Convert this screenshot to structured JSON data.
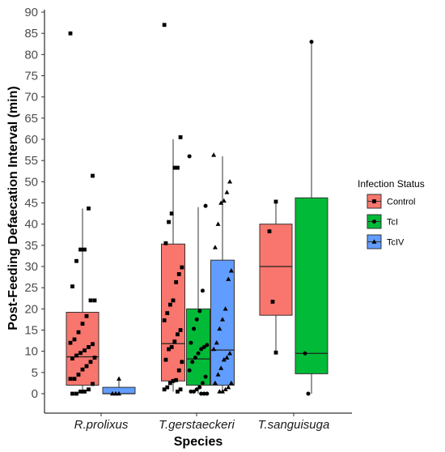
{
  "chart_data": {
    "type": "box",
    "xlabel": "Species",
    "ylabel": "Post-Feeding Defaecation Interval (min)",
    "ylim": [
      0,
      90
    ],
    "yticks": [
      0,
      5,
      10,
      15,
      20,
      25,
      30,
      35,
      40,
      45,
      50,
      55,
      60,
      65,
      70,
      75,
      80,
      85,
      90
    ],
    "grid": false,
    "categories": [
      "R.prolixus",
      "T.gerstaeckeri",
      "T.sanguisuga"
    ],
    "legend": {
      "title": "Infection Status",
      "placement": "right",
      "entries": [
        "Control",
        "TcI",
        "TcIV"
      ]
    },
    "colors": {
      "Control": "#f8766d",
      "TcI": "#00ba38",
      "TcIV": "#619cff"
    },
    "markers": {
      "Control": "square",
      "TcI": "circle",
      "TcIV": "triangle"
    },
    "boxes": [
      {
        "category": "R.prolixus",
        "group": "Control",
        "min": 0,
        "q1": 2,
        "median": 8.7,
        "q3": 19.2,
        "max": 43.7
      },
      {
        "category": "R.prolixus",
        "group": "TcIV",
        "min": 0,
        "q1": 0,
        "median": 0,
        "q3": 1.5,
        "max": 3.5
      },
      {
        "category": "T.gerstaeckeri",
        "group": "Control",
        "min": 0.5,
        "q1": 3,
        "median": 11.8,
        "q3": 35.3,
        "max": 60
      },
      {
        "category": "T.gerstaeckeri",
        "group": "TcI",
        "min": 0,
        "q1": 2,
        "median": 8.2,
        "q3": 20,
        "max": 44
      },
      {
        "category": "T.gerstaeckeri",
        "group": "TcIV",
        "min": 0.5,
        "q1": 2,
        "median": 10.3,
        "q3": 31.5,
        "max": 56
      },
      {
        "category": "T.sanguisuga",
        "group": "Control",
        "min": 9.7,
        "q1": 18.5,
        "median": 30,
        "q3": 40,
        "max": 45.3
      },
      {
        "category": "T.sanguisuga",
        "group": "TcI",
        "min": 0,
        "q1": 4.7,
        "median": 9.5,
        "q3": 46.2,
        "max": 83
      }
    ],
    "points": [
      {
        "category": "R.prolixus",
        "group": "Control",
        "values": [
          85,
          51.4,
          43.7,
          34,
          34,
          31.3,
          25.3,
          22,
          22,
          18.3,
          16.5,
          14.5,
          12.8,
          12,
          11.7,
          11,
          10.2,
          9.6,
          9,
          8.3,
          8.5,
          7.5,
          6.5,
          5.7,
          4.5,
          3.5,
          3.5,
          2.3,
          1,
          0.5,
          0.5,
          0,
          0
        ]
      },
      {
        "category": "R.prolixus",
        "group": "TcIV",
        "values": [
          3.5,
          0,
          0,
          0
        ]
      },
      {
        "category": "T.gerstaeckeri",
        "group": "Control",
        "values": [
          87,
          60.5,
          53.3,
          53.3,
          42.5,
          40.5,
          35.5,
          29.8,
          28.2,
          26.3,
          22,
          21,
          19,
          17.3,
          15,
          14,
          12.3,
          11,
          10.5,
          8,
          7.5,
          5.5,
          3.2,
          3,
          2.5,
          1.5,
          1,
          1,
          0.5
        ]
      },
      {
        "category": "T.gerstaeckeri",
        "group": "TcI",
        "values": [
          56,
          44.3,
          24.3,
          19.5,
          17.5,
          15.3,
          12,
          11.5,
          11,
          10.5,
          9.5,
          8.5,
          7.5,
          5.5,
          4,
          2.5,
          1.5,
          1,
          0.5,
          0.5,
          0,
          0,
          0
        ]
      },
      {
        "category": "T.gerstaeckeri",
        "group": "TcIV",
        "values": [
          56.3,
          50,
          47.5,
          45.5,
          45,
          40,
          34.5,
          29,
          27,
          20,
          17.5,
          15.3,
          12,
          10.5,
          9.5,
          8.5,
          8,
          6,
          4.5,
          2.5,
          2.5,
          1.5,
          1,
          0.5,
          0.5
        ]
      },
      {
        "category": "T.sanguisuga",
        "group": "Control",
        "values": [
          45.3,
          38.3,
          21.7,
          9.7
        ]
      },
      {
        "category": "T.sanguisuga",
        "group": "TcI",
        "values": [
          83,
          9.5,
          0
        ]
      }
    ]
  }
}
